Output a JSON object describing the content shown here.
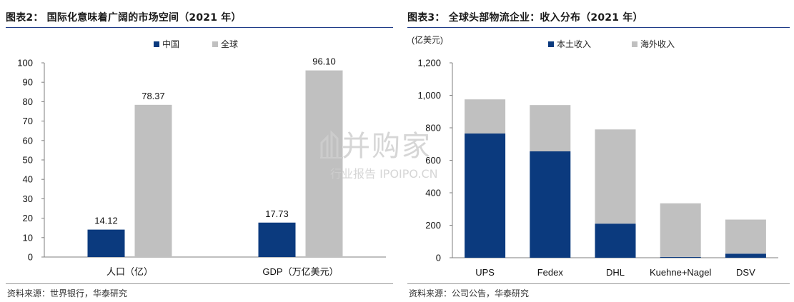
{
  "chart_data": [
    {
      "type": "bar",
      "title": "图表2： 国际化意味着广阔的市场空间（2021 年）",
      "source": "资料来源：世界银行，华泰研究",
      "categories": [
        "人口（亿）",
        "GDP（万亿美元）"
      ],
      "series": [
        {
          "name": "中国",
          "color": "#0b3a7e",
          "values": [
            14.12,
            17.73
          ],
          "labels": [
            "14.12",
            "17.73"
          ]
        },
        {
          "name": "全球",
          "color": "#c0c0c0",
          "values": [
            78.37,
            96.1
          ],
          "labels": [
            "78.37",
            "96.10"
          ]
        }
      ],
      "ylim": [
        0,
        100
      ],
      "yticks": [
        "0",
        "10",
        "20",
        "30",
        "40",
        "50",
        "60",
        "70",
        "80",
        "90",
        "100"
      ],
      "legend": "top-center",
      "grid": false
    },
    {
      "type": "bar",
      "stacked": true,
      "title": "图表3： 全球头部物流企业：收入分布（2021 年）",
      "source": "资料来源：公司公告，华泰研究",
      "unit": "(亿美元)",
      "categories": [
        "UPS",
        "Fedex",
        "DHL",
        "Kuehne+Nagel",
        "DSV"
      ],
      "series": [
        {
          "name": "本土收入",
          "color": "#0b3a7e",
          "values": [
            765,
            655,
            210,
            5,
            25
          ]
        },
        {
          "name": "海外收入",
          "color": "#c0c0c0",
          "values": [
            210,
            285,
            580,
            330,
            210
          ]
        }
      ],
      "ylim": [
        0,
        1200
      ],
      "yticks": [
        "0",
        "200",
        "400",
        "600",
        "800",
        "1,000",
        "1,200"
      ],
      "legend": "top-center",
      "grid": false
    }
  ],
  "watermark": {
    "main": "并购家",
    "sub": "行业报告 IPOIPO.CN"
  }
}
